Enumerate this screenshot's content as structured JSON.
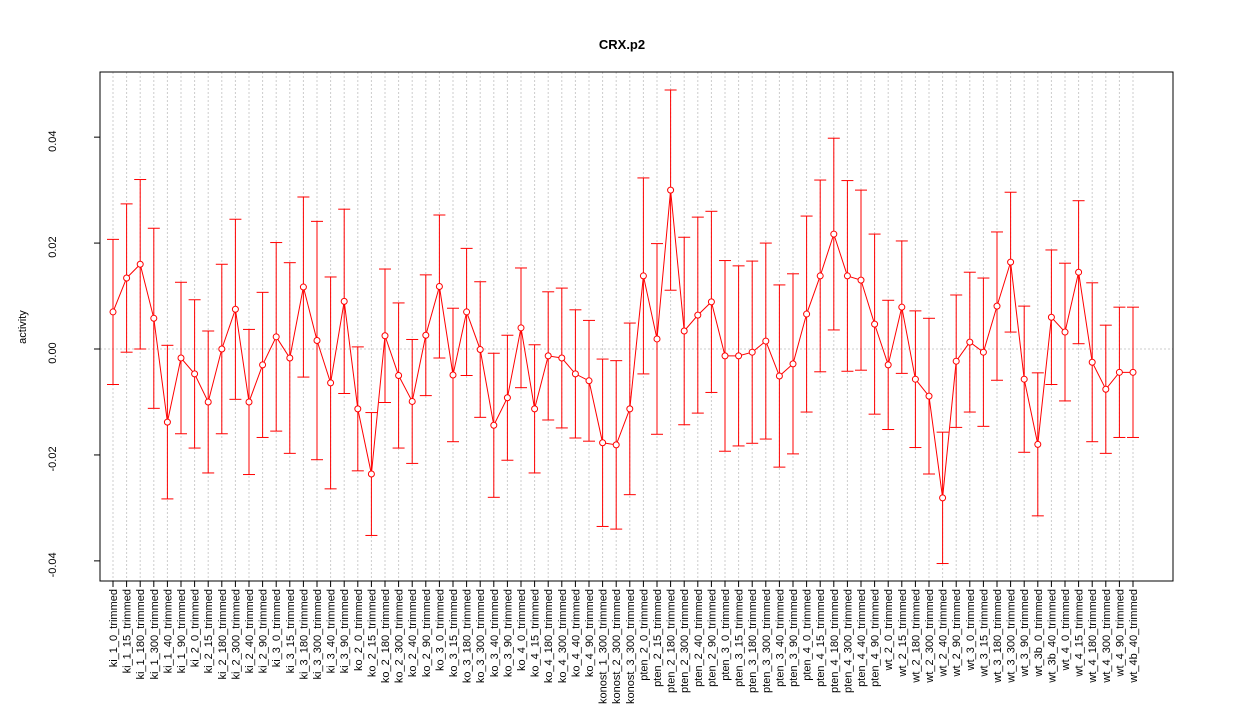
{
  "chart_data": {
    "type": "errorbar_line",
    "title": "CRX.p2",
    "y_label": "activity",
    "color": "#ff0000",
    "grid": true,
    "hline": 0,
    "ylim": [
      -0.0438,
      0.0523
    ],
    "yticks": [
      -0.04,
      -0.02,
      {
        "value": 0,
        "label": "0.00"
      },
      0.02,
      0.04
    ],
    "categories": [
      "ki_1_0_trimmed",
      "ki_1_15_trimmed",
      "ki_1_180_trimmed",
      "ki_1_300_trimmed",
      "ki_1_40_trimmed",
      "ki_1_90_trimmed",
      "ki_2_0_trimmed",
      "ki_2_15_trimmed",
      "ki_2_180_trimmed",
      "ki_2_300_trimmed",
      "ki_2_40_trimmed",
      "ki_2_90_trimmed",
      "ki_3_0_trimmed",
      "ki_3_15_trimmed",
      "ki_3_180_trimmed",
      "ki_3_300_trimmed",
      "ki_3_40_trimmed",
      "ki_3_90_trimmed",
      "ko_2_0_trimmed",
      "ko_2_15_trimmed",
      "ko_2_180_trimmed",
      "ko_2_300_trimmed",
      "ko_2_40_trimmed",
      "ko_2_90_trimmed",
      "ko_3_0_trimmed",
      "ko_3_15_trimmed",
      "ko_3_180_trimmed",
      "ko_3_300_trimmed",
      "ko_3_40_trimmed",
      "ko_3_90_trimmed",
      "ko_4_0_trimmed",
      "ko_4_15_trimmed",
      "ko_4_180_trimmed",
      "ko_4_300_trimmed",
      "ko_4_40_trimmed",
      "ko_4_90_trimmed",
      "konost_1_300_trimmed",
      "konost_2_300_trimmed",
      "konost_3_300_trimmed",
      "pten_2_0_trimmed",
      "pten_2_15_trimmed",
      "pten_2_180_trimmed",
      "pten_2_300_trimmed",
      "pten_2_40_trimmed",
      "pten_2_90_trimmed",
      "pten_3_0_trimmed",
      "pten_3_15_trimmed",
      "pten_3_180_trimmed",
      "pten_3_300_trimmed",
      "pten_3_40_trimmed",
      "pten_3_90_trimmed",
      "pten_4_0_trimmed",
      "pten_4_15_trimmed",
      "pten_4_180_trimmed",
      "pten_4_300_trimmed",
      "pten_4_40_trimmed",
      "pten_4_90_trimmed",
      "wt_2_0_trimmed",
      "wt_2_15_trimmed",
      "wt_2_180_trimmed",
      "wt_2_300_trimmed",
      "wt_2_40_trimmed",
      "wt_2_90_trimmed",
      "wt_3_0_trimmed",
      "wt_3_15_trimmed",
      "wt_3_180_trimmed",
      "wt_3_300_trimmed",
      "wt_3_90_trimmed",
      "wt_3b_0_trimmed",
      "wt_3b_40_trimmed",
      "wt_4_0_trimmed",
      "wt_4_15_trimmed",
      "wt_4_180_trimmed",
      "wt_4_300_trimmed",
      "wt_4_90_trimmed",
      "wt_4b_40_trimmed"
    ],
    "values": [
      0.007,
      0.0134,
      0.016,
      0.0058,
      -0.0138,
      -0.0017,
      -0.0047,
      -0.01,
      0.0,
      0.0075,
      -0.01,
      -0.003,
      0.0023,
      -0.0017,
      0.0117,
      0.0016,
      -0.0064,
      0.009,
      -0.0113,
      -0.0236,
      0.0025,
      -0.005,
      -0.0099,
      0.0026,
      0.0118,
      -0.0049,
      0.007,
      -0.0001,
      -0.0144,
      -0.0092,
      0.004,
      -0.0113,
      -0.0013,
      -0.0017,
      -0.0047,
      -0.006,
      -0.0177,
      -0.0181,
      -0.0113,
      0.0138,
      0.0019,
      0.03,
      0.0034,
      0.0064,
      0.0089,
      -0.0013,
      -0.0013,
      -0.0006,
      0.0015,
      -0.0051,
      -0.0028,
      0.0066,
      0.0138,
      0.0217,
      0.0138,
      0.013,
      0.0047,
      -0.003,
      0.0079,
      -0.0057,
      -0.0089,
      -0.0281,
      -0.0023,
      0.0013,
      -0.0006,
      0.0081,
      0.0164,
      -0.0057,
      -0.018,
      0.006,
      0.0032,
      0.0145,
      -0.0025,
      -0.0076,
      -0.0044,
      -0.0044
    ],
    "errors": [
      0.0137,
      0.014,
      0.016,
      0.017,
      0.0145,
      0.0143,
      0.014,
      0.0134,
      0.016,
      0.017,
      0.0137,
      0.0137,
      0.0178,
      0.018,
      0.017,
      0.0225,
      0.02,
      0.0174,
      0.0117,
      0.0116,
      0.0126,
      0.0137,
      0.0117,
      0.0114,
      0.0135,
      0.0126,
      0.012,
      0.0128,
      0.0136,
      0.0118,
      0.0113,
      0.0121,
      0.0121,
      0.0132,
      0.0121,
      0.0114,
      0.0158,
      0.0159,
      0.0162,
      0.0185,
      0.018,
      0.0189,
      0.0177,
      0.0185,
      0.0171,
      0.018,
      0.017,
      0.0172,
      0.0185,
      0.0172,
      0.017,
      0.0185,
      0.0181,
      0.0181,
      0.018,
      0.017,
      0.017,
      0.0122,
      0.0125,
      0.0129,
      0.0147,
      0.0124,
      0.0125,
      0.0132,
      0.014,
      0.014,
      0.0132,
      0.0138,
      0.0135,
      0.0127,
      0.013,
      0.0135,
      0.015,
      0.0121,
      0.0123,
      0.0123
    ]
  }
}
